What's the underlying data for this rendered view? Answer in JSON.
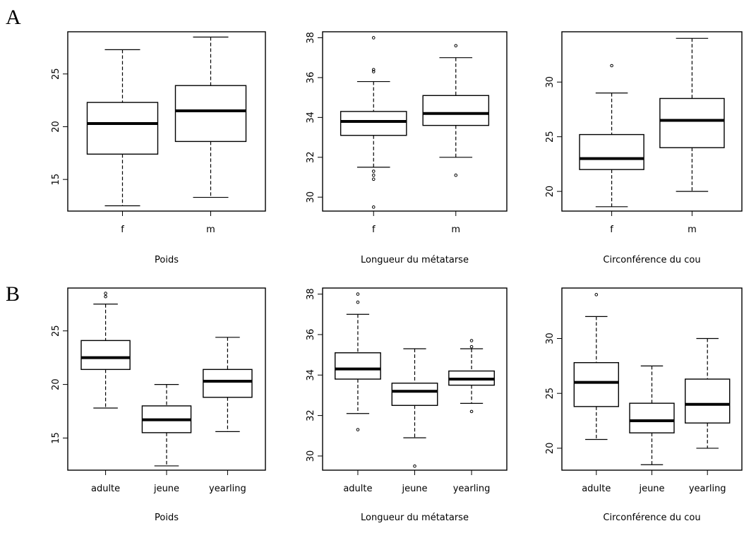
{
  "panel_labels": [
    "A",
    "B"
  ],
  "chart_data": [
    {
      "type": "box",
      "panel": "A",
      "xlabel": "Poids",
      "categories": [
        "f",
        "m"
      ],
      "ylim": [
        12,
        29
      ],
      "yticks": [
        15,
        20,
        25
      ],
      "boxes": [
        {
          "whisker_low": 12.5,
          "q1": 17.4,
          "median": 20.3,
          "q3": 22.3,
          "whisker_high": 27.3,
          "outliers": []
        },
        {
          "whisker_low": 13.3,
          "q1": 18.6,
          "median": 21.5,
          "q3": 23.9,
          "whisker_high": 28.5,
          "outliers": []
        }
      ]
    },
    {
      "type": "box",
      "panel": "A",
      "xlabel": "Longueur du métatarse",
      "categories": [
        "f",
        "m"
      ],
      "ylim": [
        29.3,
        38.3
      ],
      "yticks": [
        30,
        32,
        34,
        36,
        38
      ],
      "boxes": [
        {
          "whisker_low": 31.5,
          "q1": 33.1,
          "median": 33.8,
          "q3": 34.3,
          "whisker_high": 35.8,
          "outliers": [
            38.0,
            36.4,
            36.3,
            31.3,
            31.1,
            30.9,
            29.5
          ]
        },
        {
          "whisker_low": 32.0,
          "q1": 33.6,
          "median": 34.2,
          "q3": 35.1,
          "whisker_high": 37.0,
          "outliers": [
            37.6,
            31.1
          ]
        }
      ]
    },
    {
      "type": "box",
      "panel": "A",
      "xlabel": "Circonférence du cou",
      "categories": [
        "f",
        "m"
      ],
      "ylim": [
        18.2,
        34.6
      ],
      "yticks": [
        20,
        25,
        30
      ],
      "boxes": [
        {
          "whisker_low": 18.6,
          "q1": 22.0,
          "median": 23.0,
          "q3": 25.2,
          "whisker_high": 29.0,
          "outliers": [
            31.5
          ]
        },
        {
          "whisker_low": 20.0,
          "q1": 24.0,
          "median": 26.5,
          "q3": 28.5,
          "whisker_high": 34.0,
          "outliers": []
        }
      ]
    },
    {
      "type": "box",
      "panel": "B",
      "xlabel": "Poids",
      "categories": [
        "adulte",
        "jeune",
        "yearling"
      ],
      "ylim": [
        12,
        29
      ],
      "yticks": [
        15,
        20,
        25
      ],
      "boxes": [
        {
          "whisker_low": 17.8,
          "q1": 21.4,
          "median": 22.5,
          "q3": 24.1,
          "whisker_high": 27.5,
          "outliers": [
            28.5,
            28.2
          ]
        },
        {
          "whisker_low": 12.4,
          "q1": 15.5,
          "median": 16.7,
          "q3": 18.0,
          "whisker_high": 20.0,
          "outliers": []
        },
        {
          "whisker_low": 15.6,
          "q1": 18.8,
          "median": 20.3,
          "q3": 21.4,
          "whisker_high": 24.4,
          "outliers": []
        }
      ]
    },
    {
      "type": "box",
      "panel": "B",
      "xlabel": "Longueur du métatarse",
      "categories": [
        "adulte",
        "jeune",
        "yearling"
      ],
      "ylim": [
        29.3,
        38.3
      ],
      "yticks": [
        30,
        32,
        34,
        36,
        38
      ],
      "boxes": [
        {
          "whisker_low": 32.1,
          "q1": 33.8,
          "median": 34.3,
          "q3": 35.1,
          "whisker_high": 37.0,
          "outliers": [
            38.0,
            37.6,
            31.3
          ]
        },
        {
          "whisker_low": 30.9,
          "q1": 32.5,
          "median": 33.2,
          "q3": 33.6,
          "whisker_high": 35.3,
          "outliers": [
            29.5
          ]
        },
        {
          "whisker_low": 32.6,
          "q1": 33.5,
          "median": 33.8,
          "q3": 34.2,
          "whisker_high": 35.3,
          "outliers": [
            35.7,
            35.4,
            32.2
          ]
        }
      ]
    },
    {
      "type": "box",
      "panel": "B",
      "xlabel": "Circonférence du cou",
      "categories": [
        "adulte",
        "jeune",
        "yearling"
      ],
      "ylim": [
        18.0,
        34.6
      ],
      "yticks": [
        20,
        25,
        30
      ],
      "boxes": [
        {
          "whisker_low": 20.8,
          "q1": 23.8,
          "median": 26.0,
          "q3": 27.8,
          "whisker_high": 32.0,
          "outliers": [
            34.0
          ]
        },
        {
          "whisker_low": 18.5,
          "q1": 21.4,
          "median": 22.5,
          "q3": 24.1,
          "whisker_high": 27.5,
          "outliers": []
        },
        {
          "whisker_low": 20.0,
          "q1": 22.3,
          "median": 24.0,
          "q3": 26.3,
          "whisker_high": 30.0,
          "outliers": []
        }
      ]
    }
  ]
}
